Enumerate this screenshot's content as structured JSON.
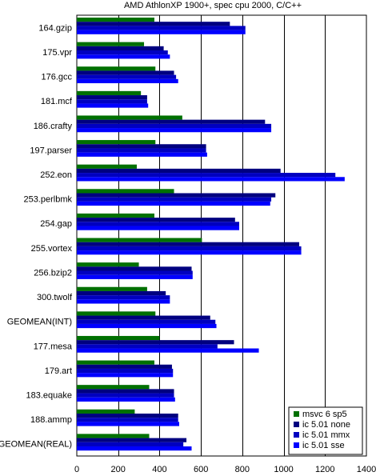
{
  "chart_data": {
    "type": "bar",
    "orientation": "horizontal",
    "title": "AMD AthlonXP 1900+, spec cpu 2000, C/C++",
    "xlabel": "",
    "ylabel": "",
    "xlim": [
      0,
      1400
    ],
    "xticks": [
      0,
      200,
      400,
      600,
      800,
      1000,
      1200,
      1400
    ],
    "grid": "vertical",
    "legend_position": "bottom-right",
    "categories": [
      "164.gzip",
      "175.vpr",
      "176.gcc",
      "181.mcf",
      "186.crafty",
      "197.parser",
      "252.eon",
      "253.perlbmk",
      "254.gap",
      "255.vortex",
      "256.bzip2",
      "300.twolf",
      "GEOMEAN(INT)",
      "177.mesa",
      "179.art",
      "183.equake",
      "188.ammp",
      "GEOMEAN(REAL)"
    ],
    "series": [
      {
        "name": "msvc 6 sp5",
        "color": "#007000",
        "values": [
          375,
          325,
          380,
          310,
          510,
          380,
          290,
          470,
          375,
          605,
          300,
          340,
          380,
          400,
          375,
          350,
          280,
          350
        ]
      },
      {
        "name": "ic 5.01 none",
        "color": "#000080",
        "values": [
          740,
          420,
          470,
          340,
          910,
          625,
          985,
          960,
          765,
          1075,
          555,
          430,
          645,
          760,
          460,
          470,
          490,
          530
        ]
      },
      {
        "name": "ic 5.01 mmx",
        "color": "#0000c0",
        "values": [
          815,
          440,
          480,
          340,
          940,
          625,
          1250,
          940,
          785,
          1085,
          560,
          450,
          670,
          680,
          465,
          470,
          490,
          515
        ]
      },
      {
        "name": "ic 5.01 sse",
        "color": "#0000ff",
        "values": [
          815,
          450,
          490,
          345,
          940,
          630,
          1295,
          935,
          785,
          1085,
          560,
          450,
          675,
          880,
          465,
          475,
          495,
          555
        ]
      }
    ]
  }
}
